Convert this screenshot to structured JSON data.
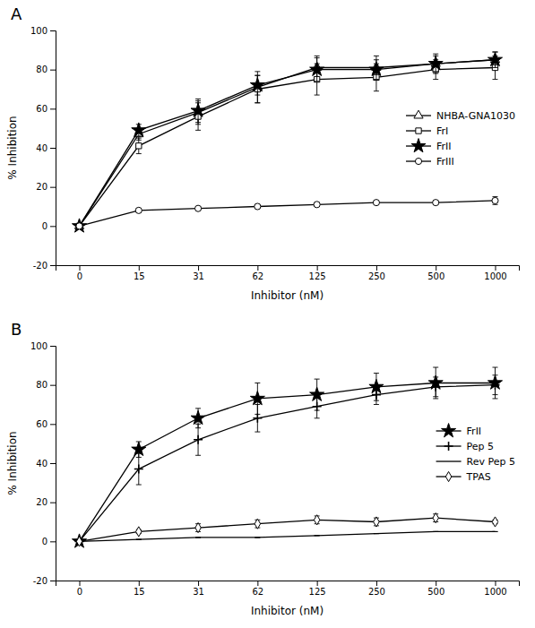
{
  "chart_data": [
    {
      "type": "line",
      "title": "A",
      "xlabel": "Inhibitor (nM)",
      "ylabel": "% Inhibition",
      "categories": [
        "0",
        "15",
        "31",
        "62",
        "125",
        "250",
        "500",
        "1000"
      ],
      "ylim": [
        -20,
        100
      ],
      "yticks": [
        -20,
        0,
        20,
        40,
        60,
        80,
        100
      ],
      "legend": "right",
      "series": [
        {
          "name": "NHBA-GNA1030",
          "color": "#000000",
          "marker": "triangle-open",
          "line_style": "solid",
          "values": [
            0,
            47,
            58,
            71,
            81,
            81,
            83,
            85
          ],
          "yerr": [
            1,
            3,
            6,
            8,
            6,
            6,
            5,
            4
          ]
        },
        {
          "name": "FrI",
          "color": "#000000",
          "marker": "square-open",
          "line_style": "solid",
          "values": [
            0,
            41,
            56,
            70,
            75,
            76,
            80,
            81
          ],
          "yerr": [
            1,
            4,
            7,
            7,
            8,
            7,
            5,
            6
          ]
        },
        {
          "name": "FrII",
          "color": "#000000",
          "marker": "star",
          "line_style": "solid",
          "values": [
            0,
            49,
            59,
            72,
            80,
            80,
            83,
            85
          ],
          "yerr": [
            1,
            3,
            6,
            5,
            6,
            5,
            4,
            4
          ]
        },
        {
          "name": "FrIII",
          "color": "#000000",
          "marker": "circle-open",
          "line_style": "solid",
          "values": [
            0,
            8,
            9,
            10,
            11,
            12,
            12,
            13
          ],
          "yerr": [
            1,
            1,
            1,
            1,
            1,
            1,
            1,
            2
          ]
        }
      ]
    },
    {
      "type": "line",
      "title": "B",
      "xlabel": "Inhibitor (nM)",
      "ylabel": "% Inhibition",
      "categories": [
        "0",
        "15",
        "31",
        "62",
        "125",
        "250",
        "500",
        "1000"
      ],
      "ylim": [
        -20,
        100
      ],
      "yticks": [
        -20,
        0,
        20,
        40,
        60,
        80,
        100
      ],
      "legend": "right",
      "series": [
        {
          "name": "FrII",
          "color": "#000000",
          "marker": "star",
          "line_style": "solid",
          "values": [
            0,
            47,
            63,
            73,
            75,
            79,
            81,
            81
          ],
          "yerr": [
            1,
            4,
            5,
            8,
            8,
            7,
            8,
            8
          ]
        },
        {
          "name": "Pep 5",
          "color": "#000000",
          "marker": "plus",
          "line_style": "solid",
          "values": [
            0,
            37,
            52,
            63,
            69,
            75,
            79,
            80
          ],
          "yerr": [
            1,
            8,
            8,
            7,
            6,
            5,
            5,
            5
          ]
        },
        {
          "name": "Rev Pep 5",
          "color": "#000000",
          "line_style": "solid",
          "values": [
            0,
            1,
            2,
            2,
            3,
            4,
            5,
            5
          ],
          "yerr": [
            0,
            0,
            0,
            0,
            0,
            0,
            0,
            0
          ]
        },
        {
          "name": "TPAS",
          "color": "#000000",
          "marker": "diamond-open",
          "line_style": "solid",
          "values": [
            0,
            5,
            7,
            9,
            11,
            10,
            12,
            10
          ],
          "yerr": [
            1,
            1,
            2,
            2,
            2,
            2,
            2,
            1
          ]
        }
      ]
    }
  ]
}
